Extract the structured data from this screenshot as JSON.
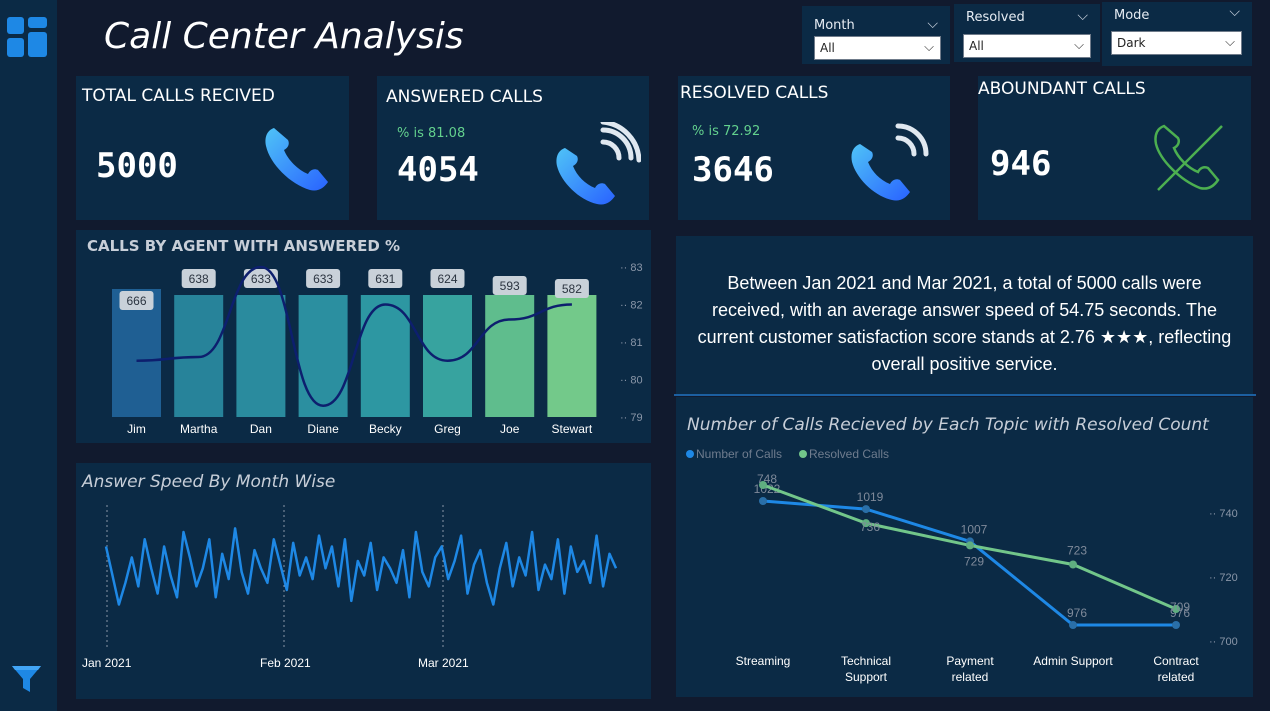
{
  "page": {
    "title": "Call Center Analysis"
  },
  "slicers": [
    {
      "label": "Month",
      "value": "All"
    },
    {
      "label": "Resolved",
      "value": "All"
    },
    {
      "label": "Mode",
      "value": "Dark"
    }
  ],
  "kpis": {
    "total": {
      "title": "TOTAL CALLS RECIVED",
      "value": "5000"
    },
    "answered": {
      "title": "ANSWERED CALLS",
      "pct": "% is 81.08",
      "value": "4054"
    },
    "resolved": {
      "title": "RESOLVED CALLS",
      "pct": "% is 72.92",
      "value": "3646"
    },
    "abandoned": {
      "title": "ABOUNDANT CALLS",
      "value": "946"
    }
  },
  "summary": {
    "text": "Between Jan 2021 and Mar 2021, a total of 5000 calls were received, with an average answer speed of 54.75 seconds. The current customer satisfaction score stands at 2.76 ★★★, reflecting overall positive service."
  },
  "colors": {
    "accent": "#1e88e5",
    "panel": "#0b2a45",
    "background": "#111a2e",
    "green": "#72c68a"
  },
  "chart_data": [
    {
      "type": "bar",
      "title": "CALLS BY AGENT WITH ANSWERED %",
      "categories": [
        "Jim",
        "Martha",
        "Dan",
        "Diane",
        "Becky",
        "Greg",
        "Joe",
        "Stewart"
      ],
      "series": [
        {
          "values": [
            666,
            638,
            633,
            633,
            631,
            624,
            593,
            582
          ]
        },
        {
          "values": [
            80.5,
            80.6,
            83.0,
            79.3,
            82.0,
            80.5,
            81.6,
            82.0
          ]
        }
      ],
      "y2lim": [
        79,
        83
      ],
      "y2ticks": [
        "83",
        "82",
        "81",
        "80",
        "79"
      ]
    },
    {
      "type": "line",
      "title": "Answer Speed By Month Wise",
      "x_ticks": [
        "Jan 2021",
        "Feb 2021",
        "Mar 2021"
      ],
      "values": [
        58,
        50,
        42,
        48,
        55,
        47,
        60,
        52,
        45,
        58,
        50,
        44,
        62,
        55,
        47,
        52,
        60,
        44,
        56,
        49,
        63,
        51,
        45,
        57,
        52,
        48,
        60,
        53,
        46,
        59,
        50,
        55,
        49,
        61,
        52,
        58,
        47,
        60,
        43,
        54,
        50,
        59,
        46,
        55,
        52,
        48,
        57,
        44,
        62,
        51,
        47,
        55,
        58,
        49,
        54,
        61,
        45,
        53,
        57,
        48,
        42,
        52,
        59,
        47,
        55,
        50,
        62,
        46,
        53,
        49,
        60,
        45,
        58,
        51,
        54,
        48,
        61,
        47,
        56,
        52
      ],
      "ylim": [
        30,
        70
      ]
    },
    {
      "type": "line",
      "title": "Number of Calls Recieved by Each Topic with Resolved Count",
      "categories": [
        "Streaming",
        "Technical Support",
        "Payment related",
        "Admin Support",
        "Contract related"
      ],
      "series": [
        {
          "name": "Number of Calls",
          "values": [
            1022,
            1019,
            1007,
            976,
            976
          ],
          "labels": [
            "1022",
            "1019",
            "1007",
            "976",
            "976"
          ]
        },
        {
          "name": "Resolved Calls",
          "values": [
            748,
            736,
            729,
            723,
            709
          ],
          "labels": [
            "748",
            "736",
            "729",
            "723",
            "709"
          ]
        }
      ],
      "y2lim": [
        700,
        740
      ],
      "y2ticks": [
        "740",
        "720",
        "700"
      ]
    }
  ]
}
